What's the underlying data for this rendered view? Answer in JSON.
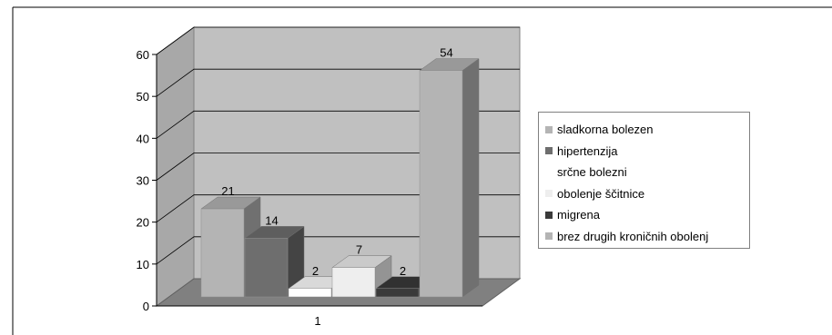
{
  "chart_data": {
    "type": "bar",
    "categories": [
      "1"
    ],
    "series": [
      {
        "name": "sladkorna bolezen",
        "values": [
          21
        ],
        "color": "#b4b4b4"
      },
      {
        "name": "hipertenzija",
        "values": [
          14
        ],
        "color": "#6e6e6e"
      },
      {
        "name": "srčne bolezni",
        "values": [
          2
        ],
        "color": "#ffffff"
      },
      {
        "name": "obolenje ščitnice",
        "values": [
          7
        ],
        "color": "#eeeeee"
      },
      {
        "name": "migrena",
        "values": [
          2
        ],
        "color": "#3a3a3a"
      },
      {
        "name": "brez drugih kroničnih obolenj",
        "values": [
          54
        ],
        "color": "#b4b4b4"
      }
    ],
    "data_labels": [
      "21",
      "14",
      "2",
      "7",
      "2",
      "54"
    ],
    "yticks": [
      "0",
      "10",
      "20",
      "30",
      "40",
      "50",
      "60"
    ],
    "ylim": [
      0,
      60
    ],
    "grid": true,
    "legend_position": "right",
    "wall_color": "#c0c0c0",
    "floor_color": "#808080"
  }
}
